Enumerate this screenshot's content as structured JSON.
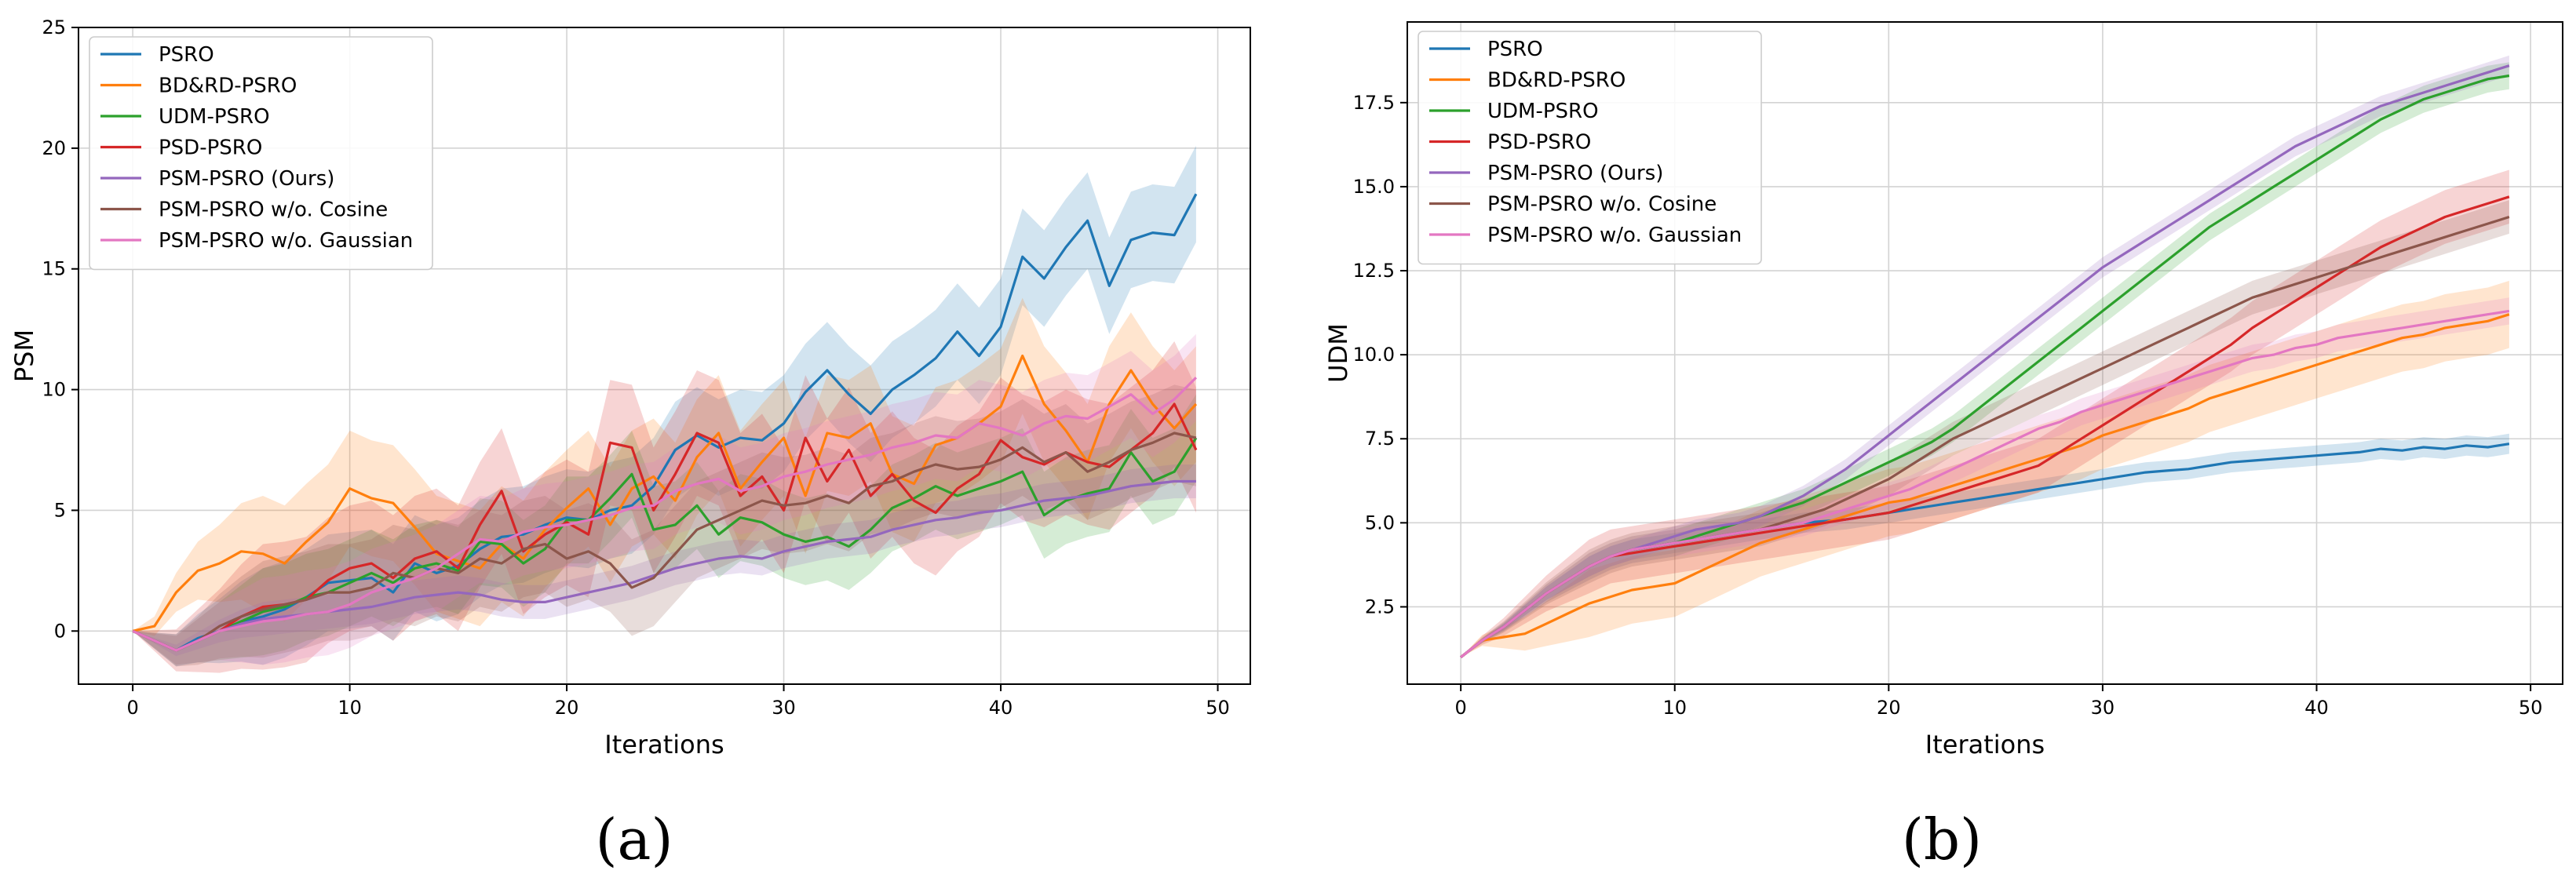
{
  "series_style": [
    {
      "name": "PSRO",
      "color": "#1f77b4"
    },
    {
      "name": "BD&RD-PSRO",
      "color": "#ff7f0e"
    },
    {
      "name": "UDM-PSRO",
      "color": "#2ca02c"
    },
    {
      "name": "PSD-PSRO",
      "color": "#d62728"
    },
    {
      "name": "PSM-PSRO (Ours)",
      "color": "#9467bd"
    },
    {
      "name": "PSM-PSRO w/o. Cosine",
      "color": "#8c564b"
    },
    {
      "name": "PSM-PSRO w/o. Gaussian",
      "color": "#e377c2"
    }
  ],
  "chart_data": [
    {
      "type": "line",
      "panel_label": "(a)",
      "title": "",
      "xlabel": "Iterations",
      "ylabel": "PSM",
      "xlim": [
        -2.5,
        51.5
      ],
      "ylim": [
        -2.2,
        25
      ],
      "xticks": [
        0,
        10,
        20,
        30,
        40,
        50
      ],
      "yticks": [
        0,
        5,
        10,
        15,
        20,
        25
      ],
      "grid": true,
      "legend_position": "top-left",
      "shaded_band": "variance band around each series mean",
      "series": [
        {
          "name": "PSRO",
          "color": "#1f77b4",
          "values": [
            0.0,
            -0.4,
            -0.8,
            -0.3,
            0.0,
            0.4,
            0.6,
            0.9,
            1.4,
            2.0,
            2.1,
            2.2,
            1.6,
            2.8,
            2.4,
            2.7,
            3.4,
            3.9,
            4.0,
            4.4,
            4.7,
            4.6,
            5.0,
            5.2,
            6.0,
            7.5,
            8.1,
            7.6,
            8.0,
            7.9,
            8.6,
            9.9,
            10.8,
            9.8,
            9.0,
            10.0,
            10.6,
            11.3,
            12.4,
            11.4,
            12.6,
            15.5,
            14.6,
            15.9,
            17.0,
            14.3,
            16.2,
            16.5,
            16.4,
            18.1
          ],
          "band": 2.0
        },
        {
          "name": "BD&RD-PSRO",
          "color": "#ff7f0e",
          "values": [
            0.0,
            0.2,
            1.6,
            2.5,
            2.8,
            3.3,
            3.2,
            2.8,
            3.7,
            4.5,
            5.9,
            5.5,
            5.3,
            4.3,
            3.2,
            2.9,
            2.6,
            3.6,
            3.0,
            4.2,
            5.1,
            5.9,
            4.4,
            5.9,
            6.4,
            5.4,
            7.2,
            8.2,
            5.9,
            7.0,
            8.0,
            5.6,
            8.2,
            8.0,
            8.6,
            6.5,
            6.1,
            7.7,
            8.0,
            8.6,
            9.3,
            11.4,
            9.4,
            8.3,
            7.0,
            9.4,
            10.8,
            9.4,
            8.4,
            9.4
          ],
          "band": 2.4
        },
        {
          "name": "UDM-PSRO",
          "color": "#2ca02c",
          "values": [
            0.0,
            -0.4,
            -0.8,
            -0.4,
            0.0,
            0.4,
            0.8,
            1.0,
            1.4,
            1.6,
            2.0,
            2.4,
            2.0,
            2.6,
            2.8,
            2.5,
            3.7,
            3.6,
            2.8,
            3.4,
            4.6,
            4.6,
            5.5,
            6.5,
            4.2,
            4.4,
            5.2,
            4.0,
            4.7,
            4.5,
            4.0,
            3.7,
            3.9,
            3.5,
            4.2,
            5.1,
            5.5,
            6.0,
            5.6,
            5.9,
            6.2,
            6.6,
            4.8,
            5.4,
            5.7,
            5.9,
            7.4,
            6.2,
            6.6,
            8.0
          ],
          "band": 1.8
        },
        {
          "name": "PSD-PSRO",
          "color": "#d62728",
          "values": [
            0.0,
            -0.4,
            -0.8,
            -0.4,
            0.0,
            0.6,
            1.0,
            1.1,
            1.3,
            2.1,
            2.6,
            2.8,
            2.2,
            3.0,
            3.3,
            2.6,
            4.4,
            5.8,
            3.3,
            4.0,
            4.5,
            4.0,
            7.8,
            7.6,
            5.0,
            6.5,
            8.2,
            7.8,
            5.6,
            6.4,
            5.0,
            8.0,
            6.2,
            7.5,
            5.6,
            6.5,
            5.4,
            4.9,
            5.9,
            6.5,
            7.9,
            7.2,
            6.9,
            7.4,
            7.0,
            6.8,
            7.5,
            8.2,
            9.4,
            7.5
          ],
          "band": 2.6
        },
        {
          "name": "PSM-PSRO (Ours)",
          "color": "#9467bd",
          "values": [
            0.0,
            -0.4,
            -0.8,
            -0.4,
            0.0,
            0.3,
            0.5,
            0.6,
            0.7,
            0.8,
            0.9,
            1.0,
            1.2,
            1.4,
            1.5,
            1.6,
            1.5,
            1.3,
            1.2,
            1.2,
            1.4,
            1.6,
            1.8,
            2.0,
            2.3,
            2.6,
            2.8,
            3.0,
            3.1,
            3.0,
            3.3,
            3.5,
            3.7,
            3.8,
            3.9,
            4.2,
            4.4,
            4.6,
            4.7,
            4.9,
            5.0,
            5.2,
            5.4,
            5.5,
            5.6,
            5.8,
            6.0,
            6.1,
            6.2,
            6.2
          ],
          "band": 0.7
        },
        {
          "name": "PSM-PSRO w/o. Cosine",
          "color": "#8c564b",
          "values": [
            0.0,
            -0.4,
            -0.8,
            -0.4,
            0.2,
            0.6,
            0.9,
            1.1,
            1.3,
            1.6,
            1.6,
            1.8,
            2.4,
            2.2,
            2.6,
            2.4,
            3.0,
            2.8,
            3.4,
            3.6,
            3.0,
            3.3,
            2.8,
            1.8,
            2.2,
            3.2,
            4.2,
            4.6,
            5.0,
            5.4,
            5.2,
            5.3,
            5.6,
            5.3,
            6.0,
            6.2,
            6.6,
            6.9,
            6.7,
            6.8,
            7.1,
            7.6,
            7.0,
            7.4,
            6.6,
            7.0,
            7.5,
            7.8,
            8.2,
            8.0
          ],
          "band": 2.0
        },
        {
          "name": "PSM-PSRO w/o. Gaussian",
          "color": "#e377c2",
          "values": [
            0.0,
            -0.4,
            -0.8,
            -0.4,
            0.0,
            0.2,
            0.4,
            0.5,
            0.7,
            0.8,
            1.1,
            1.6,
            1.9,
            2.2,
            2.6,
            3.2,
            3.8,
            3.7,
            4.1,
            4.3,
            4.4,
            4.6,
            4.8,
            5.1,
            5.2,
            5.8,
            6.1,
            6.3,
            5.8,
            6.0,
            6.4,
            6.6,
            6.9,
            7.1,
            7.3,
            7.6,
            7.8,
            8.1,
            8.0,
            8.6,
            8.4,
            8.1,
            8.6,
            8.9,
            8.8,
            9.3,
            9.8,
            9.0,
            9.6,
            10.5
          ],
          "band": 1.8
        }
      ]
    },
    {
      "type": "line",
      "panel_label": "(b)",
      "title": "",
      "xlabel": "Iterations",
      "ylabel": "UDM",
      "xlim": [
        -2.5,
        51.5
      ],
      "ylim": [
        0.2,
        19.9
      ],
      "xticks": [
        0,
        10,
        20,
        30,
        40,
        50
      ],
      "yticks": [
        2.5,
        5.0,
        7.5,
        10.0,
        12.5,
        15.0,
        17.5
      ],
      "ytick_labels": [
        "2.5",
        "5.0",
        "7.5",
        "10.0",
        "12.5",
        "15.0",
        "17.5"
      ],
      "grid": true,
      "legend_position": "top-left",
      "shaded_band": "variance band around each series mean",
      "series": [
        {
          "name": "PSRO",
          "color": "#1f77b4",
          "values": [
            1.0,
            1.5,
            1.9,
            2.4,
            2.9,
            3.3,
            3.7,
            4.0,
            4.2,
            4.3,
            4.4,
            4.5,
            4.6,
            4.7,
            4.8,
            4.9,
            5.0,
            5.05,
            5.1,
            5.2,
            5.3,
            5.4,
            5.5,
            5.6,
            5.7,
            5.8,
            5.9,
            6.0,
            6.1,
            6.2,
            6.3,
            6.4,
            6.5,
            6.55,
            6.6,
            6.7,
            6.8,
            6.85,
            6.9,
            6.95,
            7.0,
            7.05,
            7.1,
            7.2,
            7.15,
            7.25,
            7.2,
            7.3,
            7.25,
            7.35
          ],
          "band": 0.3
        },
        {
          "name": "BD&RD-PSRO",
          "color": "#ff7f0e",
          "values": [
            1.0,
            1.5,
            1.6,
            1.7,
            2.0,
            2.3,
            2.6,
            2.8,
            3.0,
            3.1,
            3.2,
            3.5,
            3.8,
            4.1,
            4.4,
            4.6,
            4.8,
            5.0,
            5.2,
            5.4,
            5.6,
            5.7,
            5.9,
            6.1,
            6.3,
            6.5,
            6.7,
            6.9,
            7.1,
            7.3,
            7.6,
            7.8,
            8.0,
            8.2,
            8.4,
            8.7,
            8.9,
            9.1,
            9.3,
            9.5,
            9.7,
            9.9,
            10.1,
            10.3,
            10.5,
            10.6,
            10.8,
            10.9,
            11.0,
            11.2
          ],
          "band": 1.0
        },
        {
          "name": "UDM-PSRO",
          "color": "#2ca02c",
          "values": [
            1.0,
            1.5,
            1.9,
            2.4,
            2.9,
            3.3,
            3.7,
            4.0,
            4.2,
            4.3,
            4.4,
            4.6,
            4.8,
            5.0,
            5.2,
            5.4,
            5.6,
            5.9,
            6.2,
            6.5,
            6.8,
            7.1,
            7.4,
            7.8,
            8.3,
            8.8,
            9.3,
            9.8,
            10.3,
            10.8,
            11.3,
            11.8,
            12.3,
            12.8,
            13.3,
            13.8,
            14.2,
            14.6,
            15.0,
            15.4,
            15.8,
            16.2,
            16.6,
            17.0,
            17.3,
            17.6,
            17.8,
            18.0,
            18.2,
            18.3
          ],
          "band": 0.4
        },
        {
          "name": "PSD-PSRO",
          "color": "#d62728",
          "values": [
            1.0,
            1.5,
            1.9,
            2.4,
            2.9,
            3.3,
            3.7,
            4.0,
            4.1,
            4.2,
            4.3,
            4.4,
            4.5,
            4.6,
            4.7,
            4.8,
            4.9,
            5.0,
            5.1,
            5.2,
            5.3,
            5.5,
            5.7,
            5.9,
            6.1,
            6.3,
            6.5,
            6.7,
            7.1,
            7.5,
            7.9,
            8.3,
            8.7,
            9.1,
            9.5,
            9.9,
            10.3,
            10.8,
            11.2,
            11.6,
            12.0,
            12.4,
            12.8,
            13.2,
            13.5,
            13.8,
            14.1,
            14.3,
            14.5,
            14.7
          ],
          "band": 0.8
        },
        {
          "name": "PSM-PSRO (Ours)",
          "color": "#9467bd",
          "values": [
            1.0,
            1.5,
            1.9,
            2.4,
            2.9,
            3.3,
            3.7,
            4.0,
            4.2,
            4.4,
            4.6,
            4.8,
            4.9,
            5.0,
            5.2,
            5.5,
            5.8,
            6.2,
            6.6,
            7.1,
            7.6,
            8.1,
            8.6,
            9.1,
            9.6,
            10.1,
            10.6,
            11.1,
            11.6,
            12.1,
            12.6,
            13.0,
            13.4,
            13.8,
            14.2,
            14.6,
            15.0,
            15.4,
            15.8,
            16.2,
            16.5,
            16.8,
            17.1,
            17.4,
            17.6,
            17.8,
            18.0,
            18.2,
            18.4,
            18.6
          ],
          "band": 0.3
        },
        {
          "name": "PSM-PSRO w/o. Cosine",
          "color": "#8c564b",
          "values": [
            1.0,
            1.5,
            1.9,
            2.4,
            2.9,
            3.3,
            3.7,
            4.0,
            4.2,
            4.3,
            4.4,
            4.5,
            4.6,
            4.7,
            4.8,
            5.0,
            5.2,
            5.4,
            5.7,
            6.0,
            6.3,
            6.7,
            7.1,
            7.5,
            7.8,
            8.1,
            8.4,
            8.7,
            9.0,
            9.3,
            9.6,
            9.9,
            10.2,
            10.5,
            10.8,
            11.1,
            11.4,
            11.7,
            11.9,
            12.1,
            12.3,
            12.5,
            12.7,
            12.9,
            13.1,
            13.3,
            13.5,
            13.7,
            13.9,
            14.1
          ],
          "band": 0.5
        },
        {
          "name": "PSM-PSRO w/o. Gaussian",
          "color": "#e377c2",
          "values": [
            1.0,
            1.5,
            1.9,
            2.4,
            2.9,
            3.3,
            3.7,
            4.0,
            4.2,
            4.3,
            4.4,
            4.5,
            4.6,
            4.7,
            4.8,
            4.9,
            5.0,
            5.2,
            5.4,
            5.6,
            5.8,
            6.0,
            6.3,
            6.6,
            6.9,
            7.2,
            7.5,
            7.8,
            8.0,
            8.3,
            8.5,
            8.7,
            8.9,
            9.1,
            9.3,
            9.5,
            9.7,
            9.9,
            10.0,
            10.2,
            10.3,
            10.5,
            10.6,
            10.7,
            10.8,
            10.9,
            11.0,
            11.1,
            11.2,
            11.3
          ],
          "band": 0.4
        }
      ]
    }
  ]
}
